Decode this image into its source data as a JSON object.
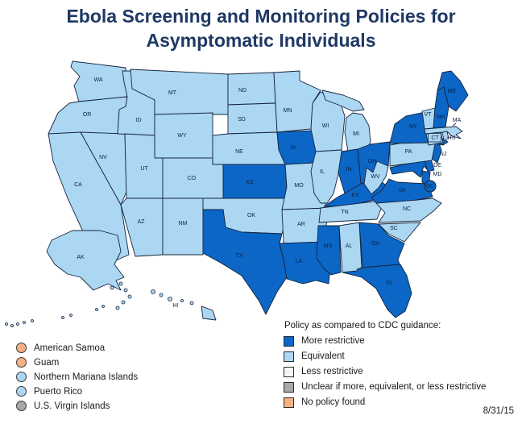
{
  "title": "Ebola Screening and Monitoring Policies for Asymptomatic Individuals",
  "date": "8/31/15",
  "colors": {
    "more_restrictive": "#0B66C6",
    "equivalent": "#ABD7F3",
    "less_restrictive": "#F2F6FB",
    "unclear": "#A8A8A8",
    "no_policy": "#F6B083",
    "border": "#16243E",
    "title_text": "#1F3864",
    "label_text": "#0D2140"
  },
  "legend": {
    "heading": "Policy as compared to CDC guidance:",
    "items": [
      {
        "label": "More restrictive",
        "policy": "more_restrictive"
      },
      {
        "label": "Equivalent",
        "policy": "equivalent"
      },
      {
        "label": "Less restrictive",
        "policy": "less_restrictive"
      },
      {
        "label": "Unclear if more, equivalent, or less restrictive",
        "policy": "unclear"
      },
      {
        "label": "No policy found",
        "policy": "no_policy"
      }
    ]
  },
  "territories": [
    {
      "label": "American Samoa",
      "policy": "no_policy"
    },
    {
      "label": "Guam",
      "policy": "no_policy"
    },
    {
      "label": "Northern Mariana Islands",
      "policy": "equivalent"
    },
    {
      "label": "Puerto Rico",
      "policy": "equivalent"
    },
    {
      "label": "U.S. Virgin Islands",
      "policy": "unclear"
    }
  ],
  "states": [
    {
      "abbr": "WA",
      "policy": "equivalent"
    },
    {
      "abbr": "OR",
      "policy": "equivalent"
    },
    {
      "abbr": "CA",
      "policy": "equivalent"
    },
    {
      "abbr": "NV",
      "policy": "equivalent"
    },
    {
      "abbr": "ID",
      "policy": "equivalent"
    },
    {
      "abbr": "MT",
      "policy": "equivalent"
    },
    {
      "abbr": "WY",
      "policy": "equivalent"
    },
    {
      "abbr": "UT",
      "policy": "equivalent"
    },
    {
      "abbr": "CO",
      "policy": "equivalent"
    },
    {
      "abbr": "AZ",
      "policy": "equivalent"
    },
    {
      "abbr": "NM",
      "policy": "equivalent"
    },
    {
      "abbr": "ND",
      "policy": "equivalent"
    },
    {
      "abbr": "SD",
      "policy": "equivalent"
    },
    {
      "abbr": "NE",
      "policy": "equivalent"
    },
    {
      "abbr": "KS",
      "policy": "more_restrictive"
    },
    {
      "abbr": "OK",
      "policy": "equivalent"
    },
    {
      "abbr": "TX",
      "policy": "more_restrictive"
    },
    {
      "abbr": "MN",
      "policy": "equivalent"
    },
    {
      "abbr": "IA",
      "policy": "more_restrictive"
    },
    {
      "abbr": "MO",
      "policy": "equivalent"
    },
    {
      "abbr": "AR",
      "policy": "equivalent"
    },
    {
      "abbr": "LA",
      "policy": "more_restrictive"
    },
    {
      "abbr": "WI",
      "policy": "equivalent"
    },
    {
      "abbr": "MI",
      "policy": "equivalent"
    },
    {
      "abbr": "IL",
      "policy": "equivalent"
    },
    {
      "abbr": "IN",
      "policy": "more_restrictive"
    },
    {
      "abbr": "OH",
      "policy": "more_restrictive"
    },
    {
      "abbr": "KY",
      "policy": "more_restrictive"
    },
    {
      "abbr": "TN",
      "policy": "equivalent"
    },
    {
      "abbr": "MS",
      "policy": "more_restrictive"
    },
    {
      "abbr": "AL",
      "policy": "equivalent"
    },
    {
      "abbr": "GA",
      "policy": "more_restrictive"
    },
    {
      "abbr": "FL",
      "policy": "more_restrictive"
    },
    {
      "abbr": "SC",
      "policy": "equivalent"
    },
    {
      "abbr": "NC",
      "policy": "equivalent"
    },
    {
      "abbr": "VA",
      "policy": "more_restrictive"
    },
    {
      "abbr": "WV",
      "policy": "equivalent"
    },
    {
      "abbr": "MD",
      "policy": "more_restrictive"
    },
    {
      "abbr": "DE",
      "policy": "more_restrictive"
    },
    {
      "abbr": "NJ",
      "policy": "more_restrictive"
    },
    {
      "abbr": "PA",
      "policy": "equivalent"
    },
    {
      "abbr": "NY",
      "policy": "more_restrictive"
    },
    {
      "abbr": "VT",
      "policy": "equivalent"
    },
    {
      "abbr": "NH",
      "policy": "more_restrictive"
    },
    {
      "abbr": "ME",
      "policy": "more_restrictive"
    },
    {
      "abbr": "MA",
      "policy": "equivalent"
    },
    {
      "abbr": "CT",
      "policy": "equivalent"
    },
    {
      "abbr": "RI",
      "policy": "equivalent"
    },
    {
      "abbr": "DC",
      "policy": "more_restrictive"
    },
    {
      "abbr": "AK",
      "policy": "equivalent"
    },
    {
      "abbr": "HI",
      "policy": "equivalent"
    }
  ]
}
